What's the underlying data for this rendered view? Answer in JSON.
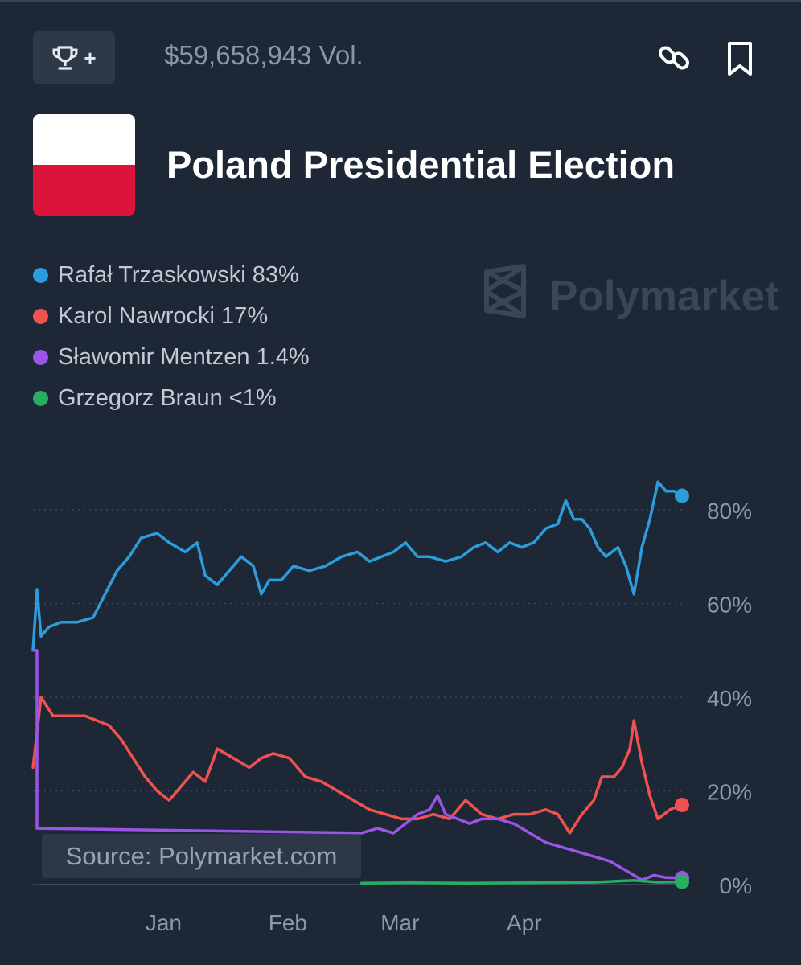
{
  "header": {
    "trophy_plus": "+",
    "volume": "$59,658,943 Vol."
  },
  "market": {
    "title": "Poland Presidential Election"
  },
  "watermark": "Polymarket",
  "source": "Source: Polymarket.com",
  "legend": [
    {
      "label": "Rafał Trzaskowski 83%",
      "color": "#2d9cdb"
    },
    {
      "label": "Karol Nawrocki 17%",
      "color": "#f0524f"
    },
    {
      "label": "Sławomir Mentzen 1.4%",
      "color": "#9a55e6"
    },
    {
      "label": "Grzegorz Braun <1%",
      "color": "#27ae60"
    }
  ],
  "colors": {
    "background": "#1d2735",
    "grid": "#3b4656",
    "axis_text": "#8e98a6"
  },
  "chart_data": {
    "type": "line",
    "y_unit": "%",
    "ylim": [
      0,
      90
    ],
    "y_ticks": [
      0,
      20,
      40,
      60,
      80
    ],
    "y_tick_labels": [
      "0%",
      "20%",
      "40%",
      "60%",
      "80%"
    ],
    "x_ticks": [
      {
        "label": "Jan",
        "x": "2025-01-01"
      },
      {
        "label": "Feb",
        "x": "2025-02-01"
      },
      {
        "label": "Mar",
        "x": "2025-03-01"
      },
      {
        "label": "Apr",
        "x": "2025-04-01"
      }
    ],
    "xlim": [
      "2024-12-01",
      "2025-05-12"
    ],
    "grid": true,
    "series": [
      {
        "name": "Rafał Trzaskowski",
        "color": "#2d9cdb",
        "points": [
          [
            "2024-12-01",
            50
          ],
          [
            "2024-12-02",
            63
          ],
          [
            "2024-12-03",
            53
          ],
          [
            "2024-12-05",
            55
          ],
          [
            "2024-12-08",
            56
          ],
          [
            "2024-12-12",
            56
          ],
          [
            "2024-12-16",
            57
          ],
          [
            "2024-12-19",
            62
          ],
          [
            "2024-12-22",
            67
          ],
          [
            "2024-12-25",
            70
          ],
          [
            "2024-12-28",
            74
          ],
          [
            "2025-01-01",
            75
          ],
          [
            "2025-01-04",
            73
          ],
          [
            "2025-01-08",
            71
          ],
          [
            "2025-01-11",
            73
          ],
          [
            "2025-01-13",
            66
          ],
          [
            "2025-01-16",
            64
          ],
          [
            "2025-01-19",
            67
          ],
          [
            "2025-01-22",
            70
          ],
          [
            "2025-01-25",
            68
          ],
          [
            "2025-01-27",
            62
          ],
          [
            "2025-01-29",
            65
          ],
          [
            "2025-02-01",
            65
          ],
          [
            "2025-02-04",
            68
          ],
          [
            "2025-02-08",
            67
          ],
          [
            "2025-02-12",
            68
          ],
          [
            "2025-02-16",
            70
          ],
          [
            "2025-02-20",
            71
          ],
          [
            "2025-02-23",
            69
          ],
          [
            "2025-02-26",
            70
          ],
          [
            "2025-03-01",
            71
          ],
          [
            "2025-03-04",
            73
          ],
          [
            "2025-03-07",
            70
          ],
          [
            "2025-03-10",
            70
          ],
          [
            "2025-03-14",
            69
          ],
          [
            "2025-03-18",
            70
          ],
          [
            "2025-03-21",
            72
          ],
          [
            "2025-03-24",
            73
          ],
          [
            "2025-03-27",
            71
          ],
          [
            "2025-03-30",
            73
          ],
          [
            "2025-04-02",
            72
          ],
          [
            "2025-04-05",
            73
          ],
          [
            "2025-04-08",
            76
          ],
          [
            "2025-04-11",
            77
          ],
          [
            "2025-04-13",
            82
          ],
          [
            "2025-04-15",
            78
          ],
          [
            "2025-04-17",
            78
          ],
          [
            "2025-04-19",
            76
          ],
          [
            "2025-04-21",
            72
          ],
          [
            "2025-04-23",
            70
          ],
          [
            "2025-04-26",
            72
          ],
          [
            "2025-04-28",
            68
          ],
          [
            "2025-04-30",
            62
          ],
          [
            "2025-05-02",
            72
          ],
          [
            "2025-05-04",
            78
          ],
          [
            "2025-05-06",
            86
          ],
          [
            "2025-05-08",
            84
          ],
          [
            "2025-05-10",
            84
          ],
          [
            "2025-05-12",
            83
          ]
        ]
      },
      {
        "name": "Karol Nawrocki",
        "color": "#f0524f",
        "points": [
          [
            "2024-12-01",
            25
          ],
          [
            "2024-12-03",
            40
          ],
          [
            "2024-12-06",
            36
          ],
          [
            "2024-12-10",
            36
          ],
          [
            "2024-12-14",
            36
          ],
          [
            "2024-12-17",
            35
          ],
          [
            "2024-12-20",
            34
          ],
          [
            "2024-12-23",
            31
          ],
          [
            "2024-12-26",
            27
          ],
          [
            "2024-12-29",
            23
          ],
          [
            "2025-01-01",
            20
          ],
          [
            "2025-01-04",
            18
          ],
          [
            "2025-01-07",
            21
          ],
          [
            "2025-01-10",
            24
          ],
          [
            "2025-01-13",
            22
          ],
          [
            "2025-01-16",
            29
          ],
          [
            "2025-01-20",
            27
          ],
          [
            "2025-01-24",
            25
          ],
          [
            "2025-01-27",
            27
          ],
          [
            "2025-01-30",
            28
          ],
          [
            "2025-02-03",
            27
          ],
          [
            "2025-02-07",
            23
          ],
          [
            "2025-02-11",
            22
          ],
          [
            "2025-02-15",
            20
          ],
          [
            "2025-02-19",
            18
          ],
          [
            "2025-02-23",
            16
          ],
          [
            "2025-02-27",
            15
          ],
          [
            "2025-03-03",
            14
          ],
          [
            "2025-03-07",
            14
          ],
          [
            "2025-03-11",
            15
          ],
          [
            "2025-03-15",
            14
          ],
          [
            "2025-03-19",
            18
          ],
          [
            "2025-03-23",
            15
          ],
          [
            "2025-03-27",
            14
          ],
          [
            "2025-03-31",
            15
          ],
          [
            "2025-04-04",
            15
          ],
          [
            "2025-04-08",
            16
          ],
          [
            "2025-04-11",
            15
          ],
          [
            "2025-04-14",
            11
          ],
          [
            "2025-04-17",
            15
          ],
          [
            "2025-04-20",
            18
          ],
          [
            "2025-04-22",
            23
          ],
          [
            "2025-04-25",
            23
          ],
          [
            "2025-04-27",
            25
          ],
          [
            "2025-04-29",
            29
          ],
          [
            "2025-04-30",
            35
          ],
          [
            "2025-05-02",
            26
          ],
          [
            "2025-05-04",
            19
          ],
          [
            "2025-05-06",
            14
          ],
          [
            "2025-05-09",
            16
          ],
          [
            "2025-05-12",
            17
          ]
        ]
      },
      {
        "name": "Sławomir Mentzen",
        "color": "#9a55e6",
        "points": [
          [
            "2024-12-01",
            50
          ],
          [
            "2024-12-02",
            50
          ],
          [
            "2024-12-02",
            12
          ],
          [
            "2025-02-21",
            11
          ],
          [
            "2025-02-25",
            12
          ],
          [
            "2025-03-01",
            11
          ],
          [
            "2025-03-04",
            13
          ],
          [
            "2025-03-07",
            15
          ],
          [
            "2025-03-10",
            16
          ],
          [
            "2025-03-12",
            19
          ],
          [
            "2025-03-14",
            15
          ],
          [
            "2025-03-17",
            14
          ],
          [
            "2025-03-20",
            13
          ],
          [
            "2025-03-23",
            14
          ],
          [
            "2025-03-27",
            14
          ],
          [
            "2025-03-31",
            13
          ],
          [
            "2025-04-04",
            11
          ],
          [
            "2025-04-08",
            9
          ],
          [
            "2025-04-12",
            8
          ],
          [
            "2025-04-16",
            7
          ],
          [
            "2025-04-20",
            6
          ],
          [
            "2025-04-24",
            5
          ],
          [
            "2025-04-28",
            3
          ],
          [
            "2025-05-02",
            1
          ],
          [
            "2025-05-05",
            2
          ],
          [
            "2025-05-08",
            1.5
          ],
          [
            "2025-05-12",
            1.4
          ]
        ]
      },
      {
        "name": "Grzegorz Braun",
        "color": "#27ae60",
        "points": [
          [
            "2025-02-21",
            0.3
          ],
          [
            "2025-03-05",
            0.4
          ],
          [
            "2025-03-20",
            0.3
          ],
          [
            "2025-04-05",
            0.4
          ],
          [
            "2025-04-20",
            0.5
          ],
          [
            "2025-04-30",
            0.9
          ],
          [
            "2025-05-06",
            0.5
          ],
          [
            "2025-05-12",
            0.6
          ]
        ]
      }
    ]
  }
}
